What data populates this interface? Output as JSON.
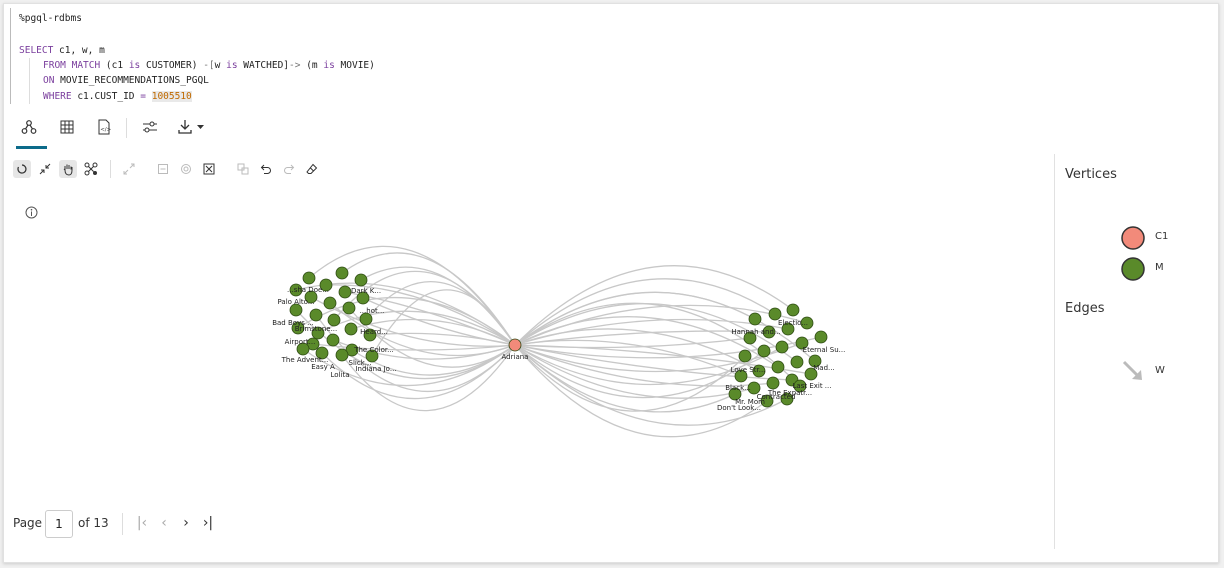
{
  "code": {
    "magic": "%pgql-rdbms",
    "select_kw": "SELECT",
    "select_cols": " c1, w, m",
    "from_kw": "FROM MATCH",
    "from_c1": " (c1 ",
    "is1": "is",
    "customer": " CUSTOMER) ",
    "arrow1": "-[",
    "w": "w ",
    "is2": "is",
    "watched": " WATCHED]",
    "arrow2": "->",
    "m": " (m ",
    "is3": "is",
    "movie": " MOVIE)",
    "on_kw": "ON",
    "on_val": " MOVIE_RECOMMENDATIONS_PGQL",
    "where_kw": "WHERE",
    "where_col": " c1.CUST_ID ",
    "eq": "=",
    "cust_id": "1005510"
  },
  "tabs": [
    {
      "name": "graph",
      "icon": "graph-icon"
    },
    {
      "name": "table",
      "icon": "table-icon"
    },
    {
      "name": "json",
      "icon": "json-icon"
    },
    {
      "name": "settings",
      "icon": "settings-icon"
    },
    {
      "name": "download",
      "icon": "download-icon"
    }
  ],
  "graph": {
    "center_label": "Adriana",
    "left_labels": [
      "...sha Doe...",
      "Dark K...",
      "Palo Alto...",
      "...hot...",
      "Bad Boys ...",
      "Brimstone...",
      "Heard...",
      "Airport...",
      "The Color...",
      "The Advent...",
      "Slick...",
      "Easy A",
      "Indiana Jo...",
      "Lolita"
    ],
    "right_labels": [
      "Electio...",
      "Hannah and...",
      "Eternal Su...",
      "Mad...",
      "Love Str...",
      "Last Exit ...",
      "Black...",
      "The Expatr...",
      "Contracted",
      "Mr. Mom",
      "Don't Look..."
    ]
  },
  "sidebar": {
    "vertices_title": "Vertices",
    "edges_title": "Edges",
    "vertices": [
      {
        "label": "C1",
        "color": "#f28a7a"
      },
      {
        "label": "M",
        "color": "#5a8a2a"
      }
    ],
    "edges": [
      {
        "label": "W",
        "color": "#bbbbbb"
      }
    ]
  },
  "pager": {
    "page_label": "Page",
    "page_value": "1",
    "of_label": "of 13"
  }
}
